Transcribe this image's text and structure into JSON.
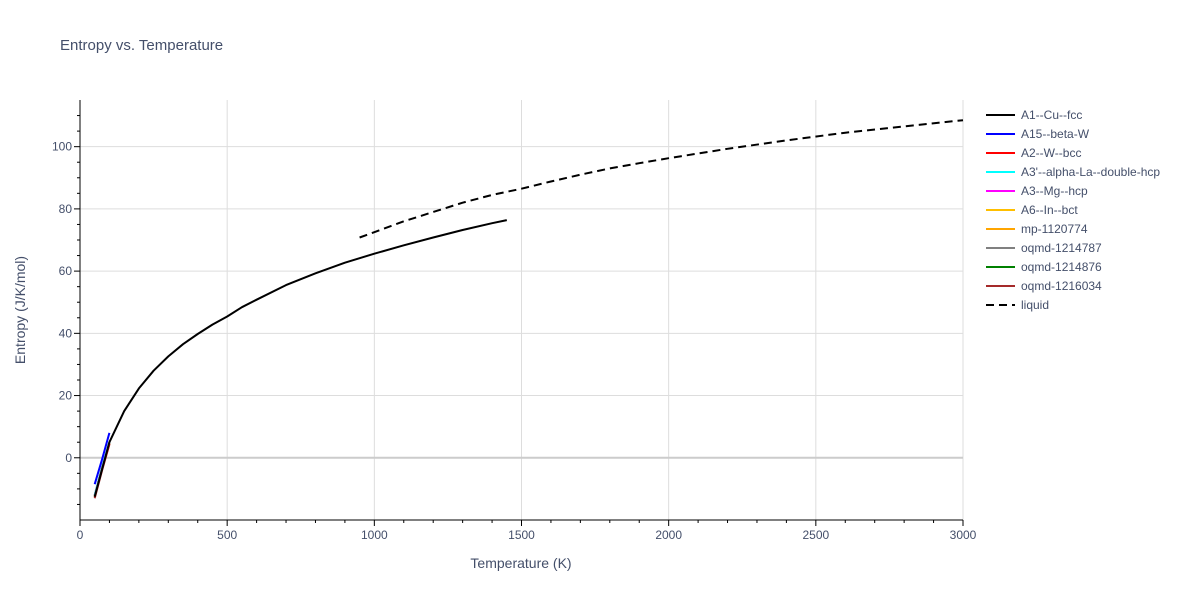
{
  "chart_data": {
    "type": "line",
    "title": "Entropy vs. Temperature",
    "xlabel": "Temperature (K)",
    "ylabel": "Entropy (J/K/mol)",
    "xlim": [
      0,
      3000
    ],
    "ylim": [
      -20,
      115
    ],
    "xticks": [
      0,
      500,
      1000,
      1500,
      2000,
      2500,
      3000
    ],
    "yticks": [
      0,
      20,
      40,
      60,
      80,
      100
    ],
    "grid": true,
    "legend_position": "right",
    "series": [
      {
        "name": "A1--Cu--fcc",
        "color": "#000000",
        "dash": "solid",
        "x": [
          50,
          100,
          150,
          200,
          250,
          300,
          350,
          400,
          450,
          500,
          550,
          600,
          700,
          800,
          900,
          1000,
          1100,
          1200,
          1300,
          1400,
          1450
        ],
        "y": [
          -12.5,
          5,
          15,
          22.3,
          28,
          32.6,
          36.5,
          39.8,
          42.8,
          45.4,
          48.4,
          50.8,
          55.5,
          59.3,
          62.7,
          65.6,
          68.3,
          70.8,
          73.2,
          75.4,
          76.4
        ]
      },
      {
        "name": "A15--beta-W",
        "color": "#0000ff",
        "dash": "solid",
        "x": [
          50,
          75,
          100
        ],
        "y": [
          -8.5,
          -0.5,
          8
        ]
      },
      {
        "name": "A2--W--bcc",
        "color": "#ff0000",
        "dash": "solid",
        "x": [
          50,
          75,
          100
        ],
        "y": [
          -12.5,
          -3.5,
          4.5
        ]
      },
      {
        "name": "A3'--alpha-La--double-hcp",
        "color": "#00ffff",
        "dash": "solid",
        "x": [
          50,
          75,
          100
        ],
        "y": [
          -12,
          -3,
          5
        ]
      },
      {
        "name": "A3--Mg--hcp",
        "color": "#ff00ff",
        "dash": "solid",
        "x": [
          50,
          75,
          100
        ],
        "y": [
          -12,
          -3,
          5
        ]
      },
      {
        "name": "A6--In--bct",
        "color": "#ffbf00",
        "dash": "solid",
        "x": [
          50,
          75,
          100
        ],
        "y": [
          -12,
          -3,
          5
        ]
      },
      {
        "name": "mp-1120774",
        "color": "#ffa500",
        "dash": "solid",
        "x": [
          50,
          75,
          100
        ],
        "y": [
          -12.2,
          -3.2,
          4.8
        ]
      },
      {
        "name": "oqmd-1214787",
        "color": "#808080",
        "dash": "solid",
        "x": [
          50,
          75,
          100
        ],
        "y": [
          -12.2,
          -3.2,
          4.8
        ]
      },
      {
        "name": "oqmd-1214876",
        "color": "#008000",
        "dash": "solid",
        "x": [
          50,
          75,
          100
        ],
        "y": [
          -12.4,
          -3.4,
          4.6
        ]
      },
      {
        "name": "oqmd-1216034",
        "color": "#a52a2a",
        "dash": "solid",
        "x": [
          50,
          75,
          100
        ],
        "y": [
          -13,
          -4,
          4.3
        ]
      },
      {
        "name": "liquid",
        "color": "#000000",
        "dash": "dash",
        "x": [
          950,
          1000,
          1100,
          1200,
          1300,
          1400,
          1500,
          1600,
          1700,
          1800,
          1900,
          2000,
          2200,
          2400,
          2600,
          2800,
          3000
        ],
        "y": [
          70.8,
          72.5,
          76,
          79,
          82,
          84.5,
          86.5,
          88.8,
          91,
          93,
          94.7,
          96.3,
          99.3,
          102,
          104.5,
          106.5,
          108.5
        ]
      }
    ]
  }
}
